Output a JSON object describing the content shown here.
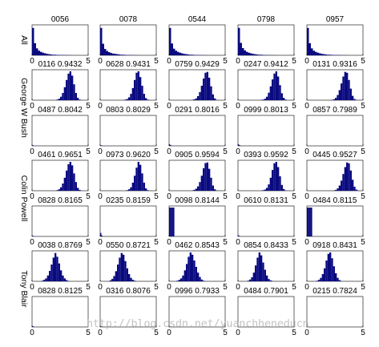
{
  "chart_data": {
    "type": "histogram-grid",
    "xlim": [
      0,
      5
    ],
    "xticks": [
      "0",
      "5"
    ],
    "bar_color": "#0a0a80",
    "row_labels": [
      {
        "label": "All",
        "rows": [
          0,
          0
        ]
      },
      {
        "label": "George W Bush",
        "rows": [
          1,
          2
        ]
      },
      {
        "label": "Colin Powell",
        "rows": [
          3,
          4
        ]
      },
      {
        "label": "Tony Blair",
        "rows": [
          5,
          6
        ]
      }
    ],
    "panels": [
      [
        {
          "title": "0056",
          "values": [
            0.95,
            0.42,
            0.24,
            0.16,
            0.12,
            0.09,
            0.07,
            0.05,
            0.04,
            0.03,
            0.02,
            0.02,
            0.015,
            0.01,
            0.01,
            0.008,
            0.006,
            0.005,
            0.004,
            0.003
          ]
        },
        {
          "title": "0078",
          "values": [
            0.95,
            0.4,
            0.22,
            0.15,
            0.11,
            0.08,
            0.06,
            0.05,
            0.04,
            0.03,
            0.02,
            0.02,
            0.015,
            0.01,
            0.01,
            0.008,
            0.006,
            0.005,
            0.004,
            0.003
          ]
        },
        {
          "title": "0544",
          "values": [
            0.95,
            0.41,
            0.23,
            0.16,
            0.12,
            0.09,
            0.07,
            0.05,
            0.04,
            0.03,
            0.02,
            0.02,
            0.015,
            0.01,
            0.01,
            0.008,
            0.006,
            0.005,
            0.004,
            0.003
          ]
        },
        {
          "title": "0798",
          "values": [
            0.95,
            0.43,
            0.25,
            0.17,
            0.12,
            0.09,
            0.07,
            0.05,
            0.04,
            0.03,
            0.02,
            0.02,
            0.015,
            0.01,
            0.01,
            0.008,
            0.006,
            0.005,
            0.004,
            0.003
          ]
        },
        {
          "title": "0957",
          "values": [
            0.95,
            0.42,
            0.24,
            0.16,
            0.12,
            0.09,
            0.07,
            0.05,
            0.04,
            0.03,
            0.02,
            0.02,
            0.015,
            0.01,
            0.01,
            0.008,
            0.006,
            0.005,
            0.004,
            0.003
          ]
        }
      ],
      [
        {
          "title": "0116 0.9432",
          "values": [
            0,
            0,
            0,
            0,
            0,
            0,
            0,
            0,
            0,
            0,
            0,
            0,
            0,
            0.02,
            0.05,
            0.12,
            0.25,
            0.45,
            0.7,
            0.92,
            1.0,
            0.85,
            0.55,
            0.25,
            0.08,
            0.02,
            0,
            0,
            0,
            0
          ]
        },
        {
          "title": "0628 0.9431",
          "values": [
            0,
            0,
            0,
            0,
            0,
            0,
            0,
            0,
            0,
            0,
            0,
            0,
            0,
            0.02,
            0.04,
            0.1,
            0.22,
            0.42,
            0.7,
            0.95,
            1.0,
            0.8,
            0.5,
            0.22,
            0.07,
            0.02,
            0,
            0,
            0,
            0
          ]
        },
        {
          "title": "0759 0.9429",
          "values": [
            0,
            0,
            0,
            0,
            0,
            0,
            0,
            0,
            0,
            0,
            0,
            0,
            0.01,
            0.03,
            0.06,
            0.14,
            0.28,
            0.5,
            0.75,
            0.95,
            0.98,
            0.78,
            0.48,
            0.2,
            0.06,
            0.01,
            0,
            0,
            0,
            0
          ]
        },
        {
          "title": "0247 0.9412",
          "values": [
            0,
            0,
            0,
            0,
            0,
            0,
            0,
            0,
            0,
            0,
            0,
            0,
            0.01,
            0.02,
            0.05,
            0.12,
            0.26,
            0.48,
            0.72,
            0.92,
            1.0,
            0.82,
            0.52,
            0.24,
            0.08,
            0.02,
            0,
            0,
            0,
            0
          ]
        },
        {
          "title": "0131 0.9316",
          "values": [
            0,
            0,
            0,
            0,
            0,
            0,
            0,
            0,
            0,
            0,
            0,
            0,
            0,
            0.01,
            0.03,
            0.08,
            0.18,
            0.35,
            0.58,
            0.82,
            0.98,
            0.95,
            0.7,
            0.4,
            0.15,
            0.04,
            0.01,
            0,
            0,
            0
          ]
        }
      ],
      [
        {
          "title": "0487 0.8042",
          "values": [
            0.02,
            0.01
          ]
        },
        {
          "title": "0803 0.8029",
          "values": [
            0.02,
            0.01
          ]
        },
        {
          "title": "0291 0.8016",
          "values": [
            0.05,
            0.02
          ]
        },
        {
          "title": "0999 0.8013",
          "values": [
            0.05,
            0.02
          ]
        },
        {
          "title": "0857 0.7989",
          "values": [
            0.0
          ]
        }
      ],
      [
        {
          "title": "0461 0.9651",
          "values": [
            0,
            0,
            0,
            0,
            0,
            0,
            0,
            0,
            0,
            0,
            0,
            0,
            0,
            0.02,
            0.05,
            0.12,
            0.25,
            0.45,
            0.7,
            0.92,
            1.0,
            0.88,
            0.6,
            0.3,
            0.1,
            0.03,
            0,
            0,
            0,
            0
          ]
        },
        {
          "title": "0973 0.9620",
          "values": [
            0,
            0,
            0,
            0,
            0,
            0,
            0,
            0,
            0,
            0,
            0,
            0,
            0,
            0,
            0.02,
            0.05,
            0.12,
            0.28,
            0.52,
            0.8,
            1.0,
            0.9,
            0.6,
            0.28,
            0.08,
            0.02,
            0,
            0,
            0,
            0
          ]
        },
        {
          "title": "0905 0.9594",
          "values": [
            0,
            0,
            0,
            0,
            0,
            0,
            0,
            0,
            0,
            0,
            0,
            0,
            0.01,
            0.03,
            0.07,
            0.15,
            0.3,
            0.52,
            0.78,
            0.96,
            0.98,
            0.76,
            0.45,
            0.18,
            0.05,
            0.01,
            0,
            0,
            0,
            0
          ]
        },
        {
          "title": "0393 0.9592",
          "values": [
            0,
            0,
            0,
            0,
            0,
            0,
            0,
            0,
            0,
            0,
            0,
            0,
            0,
            0.02,
            0.04,
            0.1,
            0.22,
            0.45,
            0.72,
            0.95,
            1.0,
            0.82,
            0.5,
            0.2,
            0.06,
            0.01,
            0,
            0,
            0,
            0
          ]
        },
        {
          "title": "0445 0.9527",
          "values": [
            0,
            0,
            0,
            0,
            0,
            0,
            0,
            0,
            0,
            0,
            0,
            0,
            0,
            0,
            0.01,
            0.03,
            0.08,
            0.18,
            0.35,
            0.58,
            0.82,
            0.98,
            0.95,
            0.7,
            0.38,
            0.14,
            0.04,
            0.01,
            0,
            0
          ]
        }
      ],
      [
        {
          "title": "0828 0.8165",
          "values": [
            0.02,
            0.01
          ]
        },
        {
          "title": "0235 0.8159",
          "values": [
            0.12,
            0.03
          ]
        },
        {
          "title": "0098 0.8144",
          "values": [
            1.0,
            1.0,
            1.0
          ]
        },
        {
          "title": "0610 0.8131",
          "values": [
            0.03,
            0.01
          ]
        },
        {
          "title": "0484 0.8115",
          "values": [
            1.0,
            1.0,
            1.0
          ]
        }
      ],
      [
        {
          "title": "0038 0.8769",
          "values": [
            0,
            0,
            0,
            0,
            0,
            0.02,
            0.05,
            0.1,
            0.2,
            0.36,
            0.58,
            0.82,
            0.98,
            0.85,
            0.62,
            0.38,
            0.2,
            0.1,
            0.04,
            0.01,
            0,
            0,
            0,
            0,
            0,
            0,
            0,
            0,
            0,
            0
          ]
        },
        {
          "title": "0550 0.8721",
          "values": [
            0,
            0,
            0,
            0,
            0,
            0.03,
            0.08,
            0.18,
            0.35,
            0.58,
            0.82,
            0.98,
            0.92,
            0.7,
            0.45,
            0.25,
            0.12,
            0.05,
            0.02,
            0,
            0,
            0,
            0,
            0,
            0,
            0,
            0,
            0,
            0,
            0
          ]
        },
        {
          "title": "0462 0.8543",
          "values": [
            0,
            0,
            0,
            0,
            0.02,
            0.05,
            0.1,
            0.2,
            0.38,
            0.6,
            0.85,
            1.0,
            0.92,
            0.72,
            0.5,
            0.3,
            0.15,
            0.06,
            0.02,
            0,
            0,
            0,
            0,
            0,
            0,
            0,
            0,
            0,
            0,
            0
          ]
        },
        {
          "title": "0854 0.8433",
          "values": [
            0,
            0,
            0,
            0,
            0,
            0.02,
            0.06,
            0.14,
            0.3,
            0.55,
            0.82,
            1.0,
            0.9,
            0.65,
            0.4,
            0.2,
            0.08,
            0.03,
            0.01,
            0,
            0,
            0,
            0,
            0,
            0,
            0,
            0,
            0,
            0,
            0
          ]
        },
        {
          "title": "0918 0.8431",
          "values": [
            0,
            0,
            0,
            0,
            0,
            0.02,
            0.05,
            0.12,
            0.25,
            0.45,
            0.72,
            0.95,
            1.0,
            0.8,
            0.52,
            0.28,
            0.12,
            0.04,
            0.01,
            0,
            0,
            0,
            0,
            0,
            0,
            0,
            0,
            0,
            0,
            0
          ]
        }
      ],
      [
        {
          "title": "0828 0.8125",
          "values": [
            0.03,
            0.01
          ]
        },
        {
          "title": "0316 0.8076",
          "values": [
            0.02,
            0.01
          ]
        },
        {
          "title": "0996 0.7933",
          "values": [
            0.0
          ]
        },
        {
          "title": "0484 0.7901",
          "values": [
            0.0
          ]
        },
        {
          "title": "0215 0.7824",
          "values": [
            0.0
          ]
        }
      ]
    ]
  },
  "watermark_text": "http://blog.csdn.net/yuanchheneducn"
}
